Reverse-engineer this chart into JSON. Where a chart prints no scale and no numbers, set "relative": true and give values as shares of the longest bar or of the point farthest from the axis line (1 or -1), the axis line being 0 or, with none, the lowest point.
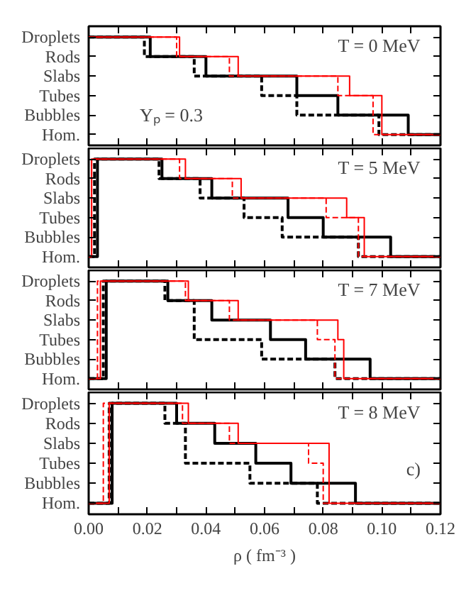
{
  "chart_data": [
    {
      "type": "step",
      "relative": true,
      "annotations": [
        "T = 0 MeV",
        "Yₚ = 0.3"
      ],
      "xlim": [
        0,
        0.12
      ],
      "tick_labels": "y",
      "grid": false,
      "xticks": [
        {
          "value": 0,
          "label": null
        },
        {
          "value": 0.01,
          "label": null
        },
        {
          "value": 0.02,
          "label": null
        },
        {
          "value": 0.03,
          "label": null
        },
        {
          "value": 0.04,
          "label": null
        },
        {
          "value": 0.05,
          "label": null
        },
        {
          "value": 0.06,
          "label": null
        },
        {
          "value": 0.07,
          "label": null
        },
        {
          "value": 0.08,
          "label": null
        },
        {
          "value": 0.09,
          "label": null
        },
        {
          "value": 0.1,
          "label": null
        },
        {
          "value": 0.11,
          "label": null
        },
        {
          "value": 0.12,
          "label": null
        }
      ],
      "y_categories": [
        "Droplets",
        "Rods",
        "Slabs",
        "Tubes",
        "Bubbles",
        "Hom."
      ],
      "series": [
        {
          "color": "#000000",
          "line_style": "solid",
          "x": [
            0,
            0.021,
            0.04,
            0.071,
            0.085,
            0.109,
            0.12
          ],
          "values": [
            1,
            0.8,
            0.6,
            0.4,
            0.2,
            0,
            0
          ]
        },
        {
          "color": "#000000",
          "line_style": "dashed",
          "x": [
            0,
            0.019,
            0.036,
            0.059,
            0.071,
            0.099,
            0.12
          ],
          "values": [
            1,
            0.8,
            0.6,
            0.4,
            0.2,
            0,
            0
          ]
        },
        {
          "color": "#ff0000",
          "line_style": "solid",
          "x": [
            0,
            0.031,
            0.051,
            0.089,
            0.1,
            0.12
          ],
          "values": [
            1,
            0.8,
            0.6,
            0.4,
            0,
            0
          ]
        },
        {
          "color": "#ff0000",
          "line_style": "dashed",
          "x": [
            0,
            0.03,
            0.048,
            0.085,
            0.097,
            0.12
          ],
          "values": [
            1,
            0.8,
            0.6,
            0.4,
            0,
            0
          ]
        }
      ]
    },
    {
      "type": "step",
      "relative": true,
      "annotations": [
        "T = 5 MeV"
      ],
      "xlim": [
        0,
        0.12
      ],
      "tick_labels": "y",
      "grid": false,
      "xticks": [
        {
          "value": 0,
          "label": null
        },
        {
          "value": 0.01,
          "label": null
        },
        {
          "value": 0.02,
          "label": null
        },
        {
          "value": 0.03,
          "label": null
        },
        {
          "value": 0.04,
          "label": null
        },
        {
          "value": 0.05,
          "label": null
        },
        {
          "value": 0.06,
          "label": null
        },
        {
          "value": 0.07,
          "label": null
        },
        {
          "value": 0.08,
          "label": null
        },
        {
          "value": 0.09,
          "label": null
        },
        {
          "value": 0.1,
          "label": null
        },
        {
          "value": 0.11,
          "label": null
        },
        {
          "value": 0.12,
          "label": null
        }
      ],
      "y_categories": [
        "Droplets",
        "Rods",
        "Slabs",
        "Tubes",
        "Bubbles",
        "Hom."
      ],
      "series": [
        {
          "color": "#000000",
          "line_style": "solid",
          "x": [
            0,
            0.003,
            0.025,
            0.042,
            0.068,
            0.08,
            0.103,
            0.12
          ],
          "values": [
            0,
            1,
            0.8,
            0.6,
            0.4,
            0.2,
            0,
            0
          ]
        },
        {
          "color": "#000000",
          "line_style": "dashed",
          "x": [
            0,
            0.002,
            0.024,
            0.038,
            0.053,
            0.066,
            0.092,
            0.12
          ],
          "values": [
            0,
            1,
            0.8,
            0.6,
            0.4,
            0.2,
            0,
            0
          ]
        },
        {
          "color": "#ff0000",
          "line_style": "solid",
          "x": [
            0,
            0.001,
            0.033,
            0.052,
            0.088,
            0.094,
            0.12
          ],
          "values": [
            0,
            1,
            0.8,
            0.6,
            0.4,
            0,
            0
          ]
        },
        {
          "color": "#ff0000",
          "line_style": "dashed",
          "x": [
            0,
            0.001,
            0.031,
            0.049,
            0.081,
            0.092,
            0.12
          ],
          "values": [
            0,
            1,
            0.8,
            0.6,
            0.4,
            0,
            0
          ]
        }
      ]
    },
    {
      "type": "step",
      "relative": true,
      "annotations": [
        "T = 7 MeV"
      ],
      "xlim": [
        0,
        0.12
      ],
      "tick_labels": "y",
      "grid": false,
      "xticks": [
        {
          "value": 0,
          "label": null
        },
        {
          "value": 0.01,
          "label": null
        },
        {
          "value": 0.02,
          "label": null
        },
        {
          "value": 0.03,
          "label": null
        },
        {
          "value": 0.04,
          "label": null
        },
        {
          "value": 0.05,
          "label": null
        },
        {
          "value": 0.06,
          "label": null
        },
        {
          "value": 0.07,
          "label": null
        },
        {
          "value": 0.08,
          "label": null
        },
        {
          "value": 0.09,
          "label": null
        },
        {
          "value": 0.1,
          "label": null
        },
        {
          "value": 0.11,
          "label": null
        },
        {
          "value": 0.12,
          "label": null
        }
      ],
      "y_categories": [
        "Droplets",
        "Rods",
        "Slabs",
        "Tubes",
        "Bubbles",
        "Hom."
      ],
      "series": [
        {
          "color": "#000000",
          "line_style": "solid",
          "x": [
            0,
            0.006,
            0.027,
            0.042,
            0.062,
            0.074,
            0.096,
            0.12
          ],
          "values": [
            0,
            1,
            0.8,
            0.6,
            0.4,
            0.2,
            0,
            0
          ]
        },
        {
          "color": "#000000",
          "line_style": "dashed",
          "x": [
            0,
            0.005,
            0.026,
            0.036,
            0.059,
            0.084,
            0.12
          ],
          "values": [
            0,
            1,
            0.8,
            0.4,
            0.2,
            0,
            0
          ]
        },
        {
          "color": "#ff0000",
          "line_style": "solid",
          "x": [
            0,
            0.004,
            0.034,
            0.051,
            0.085,
            0.087,
            0.12
          ],
          "values": [
            0,
            1,
            0.8,
            0.6,
            0.4,
            0,
            0
          ]
        },
        {
          "color": "#ff0000",
          "line_style": "dashed",
          "x": [
            0,
            0.003,
            0.033,
            0.048,
            0.078,
            0.084,
            0.12
          ],
          "values": [
            0,
            1,
            0.8,
            0.6,
            0.4,
            0,
            0
          ]
        }
      ]
    },
    {
      "type": "step",
      "relative": true,
      "annotations": [
        "T = 8 MeV",
        "c)"
      ],
      "xlabel": "ρ ( fm⁻³ )",
      "xlim": [
        0,
        0.12
      ],
      "grid": false,
      "xticks": [
        {
          "value": 0,
          "label": "0.00"
        },
        {
          "value": 0.01,
          "label": null
        },
        {
          "value": 0.02,
          "label": "0.02"
        },
        {
          "value": 0.03,
          "label": null
        },
        {
          "value": 0.04,
          "label": "0.04"
        },
        {
          "value": 0.05,
          "label": null
        },
        {
          "value": 0.06,
          "label": "0.06"
        },
        {
          "value": 0.07,
          "label": null
        },
        {
          "value": 0.08,
          "label": "0.08"
        },
        {
          "value": 0.09,
          "label": null
        },
        {
          "value": 0.1,
          "label": "0.10"
        },
        {
          "value": 0.11,
          "label": null
        },
        {
          "value": 0.12,
          "label": "0.12"
        }
      ],
      "y_categories": [
        "Droplets",
        "Rods",
        "Slabs",
        "Tubes",
        "Bubbles",
        "Hom."
      ],
      "series": [
        {
          "color": "#000000",
          "line_style": "solid",
          "x": [
            0,
            0.008,
            0.03,
            0.043,
            0.057,
            0.069,
            0.091,
            0.12
          ],
          "values": [
            0,
            1,
            0.8,
            0.6,
            0.4,
            0.2,
            0,
            0
          ]
        },
        {
          "color": "#000000",
          "line_style": "dashed",
          "x": [
            0,
            0.007,
            0.026,
            0.033,
            0.055,
            0.078,
            0.12
          ],
          "values": [
            0,
            1,
            0.8,
            0.4,
            0.2,
            0,
            0
          ]
        },
        {
          "color": "#ff0000",
          "line_style": "solid",
          "x": [
            0,
            0.007,
            0.034,
            0.051,
            0.082,
            0.12
          ],
          "values": [
            0,
            1,
            0.8,
            0.6,
            0,
            0
          ]
        },
        {
          "color": "#ff0000",
          "line_style": "dashed",
          "x": [
            0,
            0.005,
            0.032,
            0.048,
            0.075,
            0.08,
            0.12
          ],
          "values": [
            0,
            1,
            0.8,
            0.6,
            0.4,
            0,
            0
          ]
        }
      ]
    }
  ]
}
